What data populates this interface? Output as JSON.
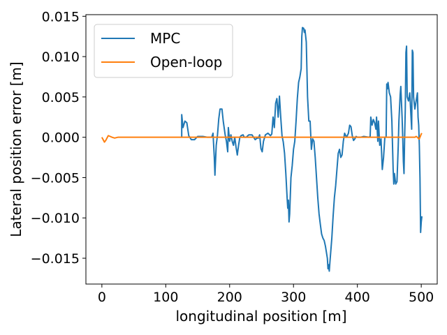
{
  "chart_data": {
    "type": "line",
    "xlabel": "longitudinal position [m]",
    "ylabel": "Lateral position error [m]",
    "xlim": [
      -25,
      525
    ],
    "ylim": [
      -0.0182,
      0.0152
    ],
    "x_ticks": [
      0,
      100,
      200,
      300,
      400,
      500
    ],
    "x_tick_labels": [
      "0",
      "100",
      "200",
      "300",
      "400",
      "500"
    ],
    "y_ticks": [
      -0.015,
      -0.01,
      -0.005,
      0.0,
      0.005,
      0.01,
      0.015
    ],
    "y_tick_labels": [
      "−0.015",
      "−0.010",
      "−0.005",
      "0.000",
      "0.005",
      "0.010",
      "0.015"
    ],
    "grid": false,
    "legend_position": "top-left",
    "series": [
      {
        "name": "MPC",
        "color": "#1f77b4",
        "points": [
          [
            125,
            0.0
          ],
          [
            125,
            0.0028
          ],
          [
            127,
            0.0012
          ],
          [
            130,
            0.002
          ],
          [
            133,
            0.0018
          ],
          [
            136,
            0.0002
          ],
          [
            140,
            -0.0003
          ],
          [
            145,
            -0.0003
          ],
          [
            150,
            0.0001
          ],
          [
            158,
            0.0001
          ],
          [
            165,
            0.0
          ],
          [
            172,
            0.0
          ],
          [
            174,
            0.0005
          ],
          [
            176,
            -0.0025
          ],
          [
            177,
            -0.0047
          ],
          [
            179,
            -0.001
          ],
          [
            181,
            0.0003
          ],
          [
            183,
            0.0023
          ],
          [
            185,
            0.0035
          ],
          [
            188,
            0.0035
          ],
          [
            190,
            0.002
          ],
          [
            193,
            0.0003
          ],
          [
            195,
            -0.0005
          ],
          [
            197,
            -0.0018
          ],
          [
            198,
            0.0012
          ],
          [
            200,
            -0.0005
          ],
          [
            202,
            0.0003
          ],
          [
            204,
            -0.0005
          ],
          [
            206,
            -0.001
          ],
          [
            208,
            0.0
          ],
          [
            210,
            -0.0012
          ],
          [
            212,
            -0.0022
          ],
          [
            214,
            -0.001
          ],
          [
            216,
            0.0
          ],
          [
            218,
            0.0002
          ],
          [
            221,
            0.0003
          ],
          [
            223,
            0.0
          ],
          [
            226,
            0.0
          ],
          [
            230,
            0.0003
          ],
          [
            235,
            0.0003
          ],
          [
            240,
            -0.0003
          ],
          [
            243,
            -0.0001
          ],
          [
            245,
            -0.0001
          ],
          [
            247,
            0.0003
          ],
          [
            249,
            -0.0014
          ],
          [
            251,
            -0.0018
          ],
          [
            253,
            -0.0005
          ],
          [
            256,
            0.0003
          ],
          [
            260,
            0.0005
          ],
          [
            264,
            0.0002
          ],
          [
            266,
            0.0004
          ],
          [
            268,
            0.0025
          ],
          [
            270,
            0.0012
          ],
          [
            272,
            0.0042
          ],
          [
            274,
            0.0048
          ],
          [
            276,
            0.0025
          ],
          [
            278,
            0.0051
          ],
          [
            280,
            0.0025
          ],
          [
            282,
            0.0002
          ],
          [
            284,
            -0.0006
          ],
          [
            286,
            -0.002
          ],
          [
            288,
            -0.0045
          ],
          [
            290,
            -0.0075
          ],
          [
            291,
            -0.0088
          ],
          [
            292,
            -0.0078
          ],
          [
            293,
            -0.0105
          ],
          [
            294,
            -0.0095
          ],
          [
            296,
            -0.005
          ],
          [
            298,
            -0.0035
          ],
          [
            300,
            -0.0015
          ],
          [
            302,
            -0.0005
          ],
          [
            304,
            0.002
          ],
          [
            306,
            0.0048
          ],
          [
            308,
            0.0068
          ],
          [
            310,
            0.0075
          ],
          [
            312,
            0.0085
          ],
          [
            313,
            0.0125
          ],
          [
            314,
            0.0136
          ],
          [
            316,
            0.0135
          ],
          [
            317,
            0.013
          ],
          [
            318,
            0.0133
          ],
          [
            320,
            0.0118
          ],
          [
            322,
            0.005
          ],
          [
            324,
            0.002
          ],
          [
            326,
            0.002
          ],
          [
            328,
            -0.0015
          ],
          [
            330,
            -0.0002
          ],
          [
            332,
            -0.0005
          ],
          [
            334,
            -0.0025
          ],
          [
            336,
            -0.005
          ],
          [
            338,
            -0.0075
          ],
          [
            340,
            -0.0095
          ],
          [
            342,
            -0.0108
          ],
          [
            344,
            -0.012
          ],
          [
            346,
            -0.0125
          ],
          [
            348,
            -0.0128
          ],
          [
            350,
            -0.0135
          ],
          [
            352,
            -0.0145
          ],
          [
            353,
            -0.015
          ],
          [
            354,
            -0.0163
          ],
          [
            355,
            -0.0158
          ],
          [
            356,
            -0.0166
          ],
          [
            357,
            -0.0155
          ],
          [
            358,
            -0.0145
          ],
          [
            360,
            -0.0125
          ],
          [
            362,
            -0.0098
          ],
          [
            364,
            -0.0075
          ],
          [
            366,
            -0.006
          ],
          [
            368,
            -0.004
          ],
          [
            370,
            -0.002
          ],
          [
            372,
            -0.0015
          ],
          [
            374,
            -0.0025
          ],
          [
            376,
            -0.0022
          ],
          [
            378,
            -0.0005
          ],
          [
            380,
            0.0005
          ],
          [
            383,
            0.0
          ],
          [
            386,
            0.0005
          ],
          [
            388,
            0.0015
          ],
          [
            390,
            0.0013
          ],
          [
            392,
            0.0002
          ],
          [
            394,
            -0.0004
          ],
          [
            396,
            -0.0002
          ],
          [
            398,
            0.0001
          ],
          [
            400,
            0.0
          ],
          [
            405,
            0.0
          ],
          [
            410,
            0.0001
          ],
          [
            418,
            0.0
          ],
          [
            420,
            0.0001
          ],
          [
            421,
            0.0025
          ],
          [
            423,
            0.0015
          ],
          [
            425,
            0.0022
          ],
          [
            427,
            0.0018
          ],
          [
            429,
            0.001
          ],
          [
            430,
            0.0025
          ],
          [
            432,
            -0.0005
          ],
          [
            433,
            0.002
          ],
          [
            435,
            -0.001
          ],
          [
            437,
            -0.0002
          ],
          [
            439,
            -0.004
          ],
          [
            441,
            -0.0025
          ],
          [
            443,
            0.0
          ],
          [
            445,
            0.0
          ],
          [
            446,
            0.0066
          ],
          [
            447,
            0.006
          ],
          [
            448,
            0.0068
          ],
          [
            450,
            0.0055
          ],
          [
            452,
            0.005
          ],
          [
            454,
            0.002
          ],
          [
            456,
            -0.004
          ],
          [
            457,
            -0.0058
          ],
          [
            458,
            -0.0045
          ],
          [
            460,
            -0.0058
          ],
          [
            462,
            -0.0055
          ],
          [
            464,
            -0.001
          ],
          [
            465,
            0.002
          ],
          [
            467,
            0.0053
          ],
          [
            468,
            0.0063
          ],
          [
            470,
            0.0025
          ],
          [
            471,
            0.0
          ],
          [
            472,
            -0.003
          ],
          [
            473,
            -0.0045
          ],
          [
            474,
            0.0
          ],
          [
            475,
            0.0035
          ],
          [
            476,
            0.0105
          ],
          [
            477,
            0.0113
          ],
          [
            478,
            0.005
          ],
          [
            480,
            0.0045
          ],
          [
            482,
            0.0055
          ],
          [
            484,
            0.0025
          ],
          [
            485,
            0.001
          ],
          [
            486,
            0.0108
          ],
          [
            487,
            0.0105
          ],
          [
            488,
            0.005
          ],
          [
            490,
            0.0035
          ],
          [
            492,
            0.0045
          ],
          [
            494,
            0.0055
          ],
          [
            495,
            0.0025
          ],
          [
            496,
            0.0015
          ],
          [
            497,
            -0.001
          ],
          [
            498,
            -0.005
          ],
          [
            499,
            -0.0118
          ],
          [
            500,
            -0.0105
          ],
          [
            501,
            -0.0098
          ]
        ]
      },
      {
        "name": "Open-loop",
        "color": "#ff7f0e",
        "points": [
          [
            0,
            0.0
          ],
          [
            2,
            -0.0003
          ],
          [
            4,
            -0.0006
          ],
          [
            6,
            -0.0004
          ],
          [
            8,
            -0.0001
          ],
          [
            10,
            0.0002
          ],
          [
            13,
            0.0001
          ],
          [
            16,
            0.0
          ],
          [
            20,
            -0.0001
          ],
          [
            25,
            0.0
          ],
          [
            50,
            0.0
          ],
          [
            100,
            0.0
          ],
          [
            200,
            0.0
          ],
          [
            300,
            0.0
          ],
          [
            400,
            0.0
          ],
          [
            480,
            0.0
          ],
          [
            490,
            0.0
          ],
          [
            492,
            0.0001
          ],
          [
            494,
            0.0
          ],
          [
            496,
            -0.0002
          ],
          [
            497,
            -0.0002
          ],
          [
            498,
            0.0
          ],
          [
            499,
            0.0002
          ],
          [
            500,
            0.0004
          ],
          [
            501,
            0.0005
          ]
        ]
      }
    ]
  }
}
